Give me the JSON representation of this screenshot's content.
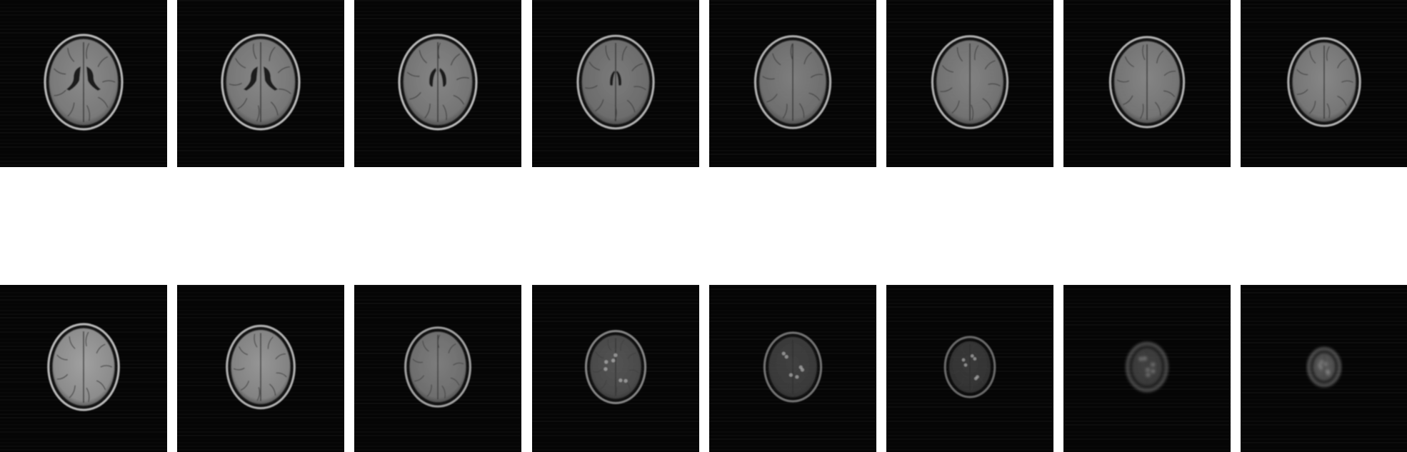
{
  "figure": {
    "background": "#ffffff",
    "tile_background": "#050505",
    "rows": [
      {
        "name": "top",
        "slices": [
          {
            "brain_tone": "#8a8a8a",
            "ventricles": "large",
            "scale": 1.0,
            "signal": 1.0
          },
          {
            "brain_tone": "#878787",
            "ventricles": "large",
            "scale": 1.0,
            "signal": 1.0
          },
          {
            "brain_tone": "#858585",
            "ventricles": "medium",
            "scale": 1.0,
            "signal": 1.0
          },
          {
            "brain_tone": "#808080",
            "ventricles": "small",
            "scale": 0.98,
            "signal": 0.95
          },
          {
            "brain_tone": "#838383",
            "ventricles": "none",
            "scale": 0.97,
            "signal": 0.95
          },
          {
            "brain_tone": "#878787",
            "ventricles": "none",
            "scale": 0.97,
            "signal": 0.95
          },
          {
            "brain_tone": "#8a8a8a",
            "ventricles": "none",
            "scale": 0.95,
            "signal": 0.95
          },
          {
            "brain_tone": "#8c8c8c",
            "ventricles": "none",
            "scale": 0.92,
            "signal": 0.95
          }
        ]
      },
      {
        "name": "bottom",
        "slices": [
          {
            "brain_tone": "#a0a0a0",
            "ventricles": "none",
            "scale": 0.9,
            "signal": 1.0
          },
          {
            "brain_tone": "#9c9c9c",
            "ventricles": "none",
            "scale": 0.86,
            "signal": 0.95
          },
          {
            "brain_tone": "#8f8f8f",
            "ventricles": "none",
            "scale": 0.82,
            "signal": 0.85
          },
          {
            "brain_tone": "#6e6e6e",
            "ventricles": "none",
            "scale": 0.74,
            "signal": 0.7
          },
          {
            "brain_tone": "#5f5f5f",
            "ventricles": "none",
            "scale": 0.7,
            "signal": 0.6
          },
          {
            "brain_tone": "#5a5a5a",
            "ventricles": "none",
            "scale": 0.6,
            "signal": 0.55
          },
          {
            "brain_tone": "#6a6a6a",
            "ventricles": "none",
            "scale": 0.45,
            "signal": 0.55
          },
          {
            "brain_tone": "#8a8a8a",
            "ventricles": "none",
            "scale": 0.33,
            "signal": 0.6
          }
        ]
      }
    ]
  }
}
